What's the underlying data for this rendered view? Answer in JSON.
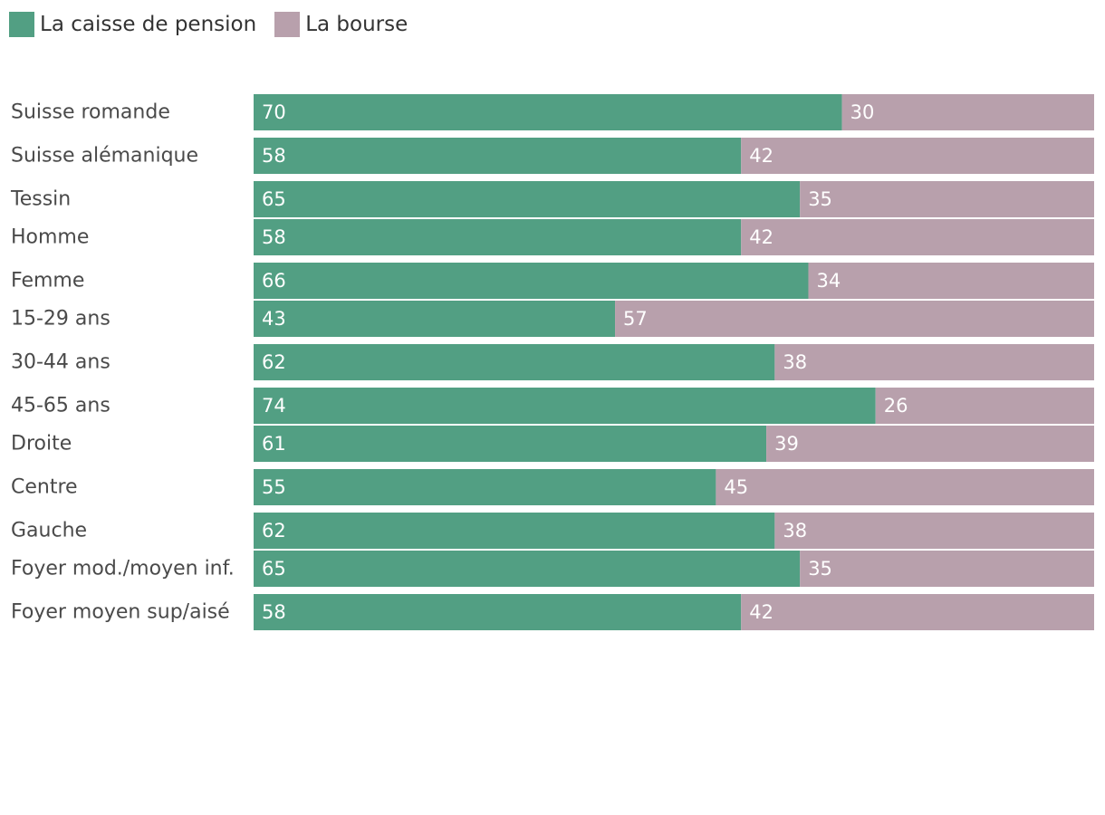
{
  "chart_data": {
    "type": "bar",
    "orientation": "horizontal",
    "stacked": true,
    "percent": true,
    "xlim": [
      0,
      100
    ],
    "grid": false,
    "legend_position": "top-left",
    "title": "",
    "xlabel": "",
    "ylabel": "",
    "categories": [
      "Suisse romande",
      "Suisse alémanique",
      "Tessin",
      "Homme",
      "Femme",
      "15-29 ans",
      "30-44 ans",
      "45-65 ans",
      "Droite",
      "Centre",
      "Gauche",
      "Foyer mod./moyen inf.",
      "Foyer moyen sup/aisé"
    ],
    "groups": [
      [
        0,
        1,
        2
      ],
      [
        3,
        4
      ],
      [
        5,
        6,
        7
      ],
      [
        8,
        9,
        10
      ],
      [
        11,
        12
      ]
    ],
    "series": [
      {
        "name": "La caisse de pension",
        "color": "#529f83",
        "values": [
          70,
          58,
          65,
          58,
          66,
          43,
          62,
          74,
          61,
          55,
          62,
          65,
          58
        ]
      },
      {
        "name": "La bourse",
        "color": "#b8a0ac",
        "values": [
          30,
          42,
          35,
          42,
          34,
          57,
          38,
          26,
          39,
          45,
          38,
          35,
          42
        ]
      }
    ]
  }
}
